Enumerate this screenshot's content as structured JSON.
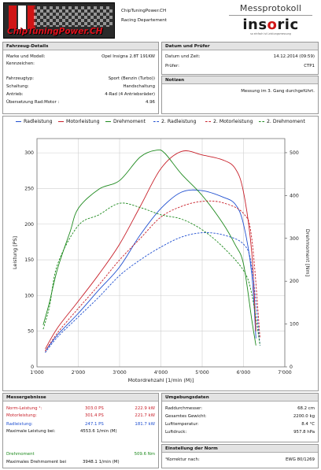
{
  "header": {
    "logo_text": "ChipTuningPower.CH",
    "company_name": "ChipTuningPower.CH",
    "company_dept": "Racing Departement",
    "protocol_title": "Messprotokoll",
    "brand_name_a": "ins",
    "brand_name_o": "o",
    "brand_name_b": "ric",
    "brand_tagline": "so einfach ist Leistungsmessung"
  },
  "vehicle": {
    "title": "Fahrzeug-Details",
    "rows": [
      {
        "label": "Marke und Modell:",
        "value": "Opel Insigna 2.8T 191KW"
      },
      {
        "label": "Kennzeichen:",
        "value": ""
      },
      {
        "label": "Fahrzeugtyp:",
        "value": "Sport (Benzin (Turbo))"
      },
      {
        "label": "Schaltung:",
        "value": "Handschaltung"
      },
      {
        "label": "Antrieb:",
        "value": "4-Rad (4 Antriebsräder)"
      },
      {
        "label": "Übersetzung Rad:Motor :",
        "value": "4.96"
      }
    ]
  },
  "date": {
    "title": "Datum und Prüfer",
    "rows": [
      {
        "label": "Datum und Zeit:",
        "value": "14.12.2014 (09:59)"
      },
      {
        "label": "Prüfer:",
        "value": "CTP1"
      }
    ]
  },
  "notes": {
    "title": "Notizen",
    "text": "Messung im 3. Gang durchgeführt."
  },
  "chart_data": {
    "type": "line",
    "xlabel": "Motordrehzahl [1/min (M)]",
    "ylabel_left": "Leistung [PS]",
    "ylabel_right": "Drehmoment [Nm]",
    "xlim": [
      1000,
      7000
    ],
    "ylim_left": [
      0,
      320
    ],
    "ylim_right": [
      0,
      533
    ],
    "xticks": [
      "1'000",
      "2'000",
      "3'000",
      "4'000",
      "5'000",
      "6'000",
      "7'000"
    ],
    "yticks_left": [
      "0",
      "50",
      "100",
      "150",
      "200",
      "250",
      "300"
    ],
    "yticks_right": [
      "0",
      "100",
      "200",
      "300",
      "400",
      "500"
    ],
    "grid": true,
    "legend_position": "top",
    "legend": [
      "Radleistung",
      "Motorleistung",
      "Drehmoment",
      "2. Radleistung",
      "2. Motorleistung",
      "2. Drehmoment"
    ],
    "series": [
      {
        "name": "Radleistung",
        "color": "#1f4fd0",
        "dashed": false,
        "axis": "left",
        "x": [
          1200,
          1500,
          2000,
          2500,
          3000,
          3500,
          4000,
          4500,
          5000,
          5500,
          5800,
          6000,
          6200,
          6300
        ],
        "y": [
          22,
          45,
          75,
          108,
          140,
          185,
          222,
          245,
          247,
          238,
          228,
          200,
          130,
          40
        ]
      },
      {
        "name": "Motorleistung",
        "color": "#c8202a",
        "dashed": false,
        "axis": "left",
        "x": [
          1200,
          1500,
          2000,
          2500,
          3000,
          3500,
          4000,
          4500,
          5000,
          5500,
          5800,
          6000,
          6200,
          6300
        ],
        "y": [
          25,
          55,
          92,
          130,
          172,
          225,
          278,
          302,
          297,
          290,
          278,
          245,
          160,
          50
        ]
      },
      {
        "name": "Drehmoment",
        "color": "#1e8a1e",
        "dashed": false,
        "axis": "right",
        "x": [
          1150,
          1300,
          1500,
          1800,
          2000,
          2500,
          3000,
          3500,
          3900,
          4100,
          4500,
          5000,
          5500,
          5800,
          6000,
          6200,
          6300
        ],
        "y": [
          98,
          150,
          230,
          315,
          370,
          415,
          435,
          490,
          506,
          498,
          450,
          400,
          335,
          285,
          240,
          110,
          50
        ]
      },
      {
        "name": "2. Radleistung",
        "color": "#1f4fd0",
        "dashed": true,
        "axis": "left",
        "x": [
          1200,
          1500,
          2000,
          2500,
          3000,
          3500,
          4000,
          4500,
          5000,
          5500,
          6000,
          6200,
          6400
        ],
        "y": [
          20,
          42,
          70,
          98,
          128,
          150,
          168,
          182,
          188,
          185,
          172,
          140,
          30
        ]
      },
      {
        "name": "2. Motorleistung",
        "color": "#c8202a",
        "dashed": true,
        "axis": "left",
        "x": [
          1200,
          1500,
          2000,
          2500,
          3000,
          3500,
          4000,
          4500,
          5000,
          5500,
          6000,
          6200,
          6400
        ],
        "y": [
          22,
          48,
          82,
          115,
          150,
          180,
          210,
          225,
          232,
          230,
          215,
          180,
          40
        ]
      },
      {
        "name": "2. Drehmoment",
        "color": "#1e8a1e",
        "dashed": true,
        "axis": "right",
        "x": [
          1150,
          1300,
          1500,
          2000,
          2500,
          3000,
          3500,
          4000,
          4500,
          5000,
          5500,
          6000,
          6200,
          6400
        ],
        "y": [
          88,
          140,
          240,
          330,
          355,
          382,
          372,
          355,
          345,
          320,
          280,
          225,
          170,
          50
        ]
      }
    ]
  },
  "results": {
    "title": "Messergebnisse",
    "rows": [
      {
        "label": "Norm-Leistung ¹:",
        "ps": "303.0 PS",
        "kw": "222.9 kW",
        "class": "red"
      },
      {
        "label": "Motorleistung:",
        "ps": "301.4 PS",
        "kw": "221.7 kW",
        "class": "red"
      },
      {
        "label": "Radleistung:",
        "ps": "247.1 PS",
        "kw": "181.7 kW",
        "class": "blue"
      },
      {
        "label": "Maximale Leistung bei:",
        "ps": "4553.6 1/min (M)",
        "kw": "",
        "class": ""
      }
    ],
    "torque_label": "Drehmoment",
    "torque_value": "509.6 Nm",
    "torque_at_label": "Maximales Drehmoment bei",
    "torque_at_value": "3948.1 1/min (M)"
  },
  "environment": {
    "title": "Umgebungsdaten",
    "rows": [
      {
        "label": "Raddurchmesser:",
        "value": "68.2 cm"
      },
      {
        "label": "Gesamtes Gewicht:",
        "value": "2200.0 kg"
      },
      {
        "label": "Lufttemperatur:",
        "value": "8.4 °C"
      },
      {
        "label": "Luftdruck:",
        "value": "957.8 hPa"
      }
    ]
  },
  "norm": {
    "title": "Einstellung der Norm",
    "label": "¹Korrektur nach:",
    "value": "EWG 80/1269"
  }
}
